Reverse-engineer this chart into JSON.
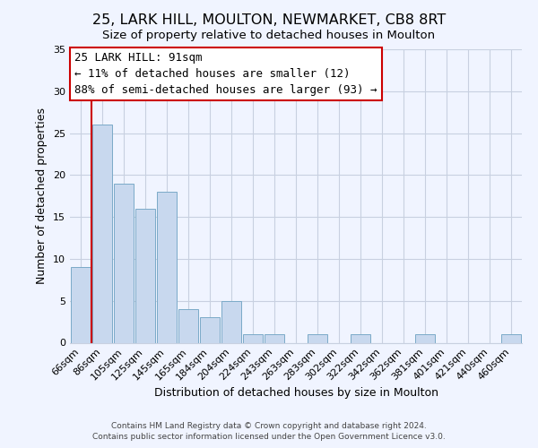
{
  "title": "25, LARK HILL, MOULTON, NEWMARKET, CB8 8RT",
  "subtitle": "Size of property relative to detached houses in Moulton",
  "xlabel": "Distribution of detached houses by size in Moulton",
  "ylabel": "Number of detached properties",
  "footer_line1": "Contains HM Land Registry data © Crown copyright and database right 2024.",
  "footer_line2": "Contains public sector information licensed under the Open Government Licence v3.0.",
  "bar_labels": [
    "66sqm",
    "86sqm",
    "105sqm",
    "125sqm",
    "145sqm",
    "165sqm",
    "184sqm",
    "204sqm",
    "224sqm",
    "243sqm",
    "263sqm",
    "283sqm",
    "302sqm",
    "322sqm",
    "342sqm",
    "362sqm",
    "381sqm",
    "401sqm",
    "421sqm",
    "440sqm",
    "460sqm"
  ],
  "bar_values": [
    9,
    26,
    19,
    16,
    18,
    4,
    3,
    5,
    1,
    1,
    0,
    1,
    0,
    1,
    0,
    0,
    1,
    0,
    0,
    0,
    1
  ],
  "bar_color": "#c8d8ee",
  "bar_edgecolor": "#7baac8",
  "ylim": [
    0,
    35
  ],
  "yticks": [
    0,
    5,
    10,
    15,
    20,
    25,
    30,
    35
  ],
  "red_line_index": 1,
  "annotation_title": "25 LARK HILL: 91sqm",
  "annotation_line1": "← 11% of detached houses are smaller (12)",
  "annotation_line2": "88% of semi-detached houses are larger (93) →",
  "annotation_box_color": "#ffffff",
  "annotation_border_color": "#cc0000",
  "background_color": "#f0f4ff",
  "grid_color": "#c8d0e0",
  "title_fontsize": 11.5,
  "subtitle_fontsize": 9.5,
  "tick_fontsize": 8,
  "ylabel_fontsize": 9,
  "xlabel_fontsize": 9,
  "annotation_fontsize": 9
}
